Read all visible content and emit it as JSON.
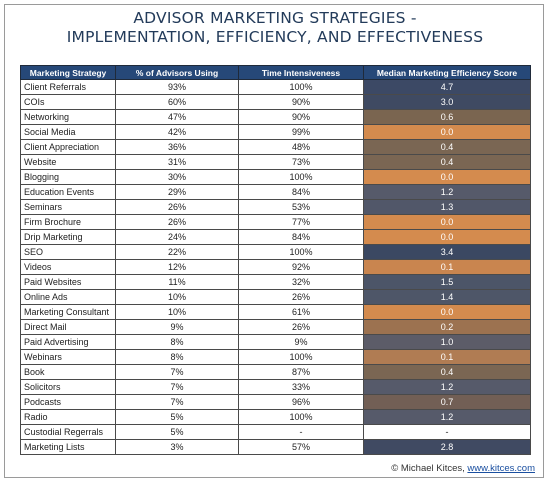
{
  "title": {
    "line1": "ADVISOR MARKETING STRATEGIES -",
    "line2": "IMPLEMENTATION, EFFICIENCY, AND EFFECTIVENESS"
  },
  "table": {
    "headers": [
      "Marketing Strategy",
      "% of Advisors Using",
      "Time Intensiveness",
      "Median Marketing Efficiency Score"
    ],
    "score_colors": {
      "dark": "#3b4760",
      "slate": "#55596a",
      "brown": "#7a6653",
      "orange": "#d48b4e",
      "white": "#ffffff"
    },
    "rows": [
      {
        "strategy": "Client Referrals",
        "pct": "93%",
        "time": "100%",
        "score": "4.7",
        "color": "#3c4965"
      },
      {
        "strategy": "COIs",
        "pct": "60%",
        "time": "90%",
        "score": "3.0",
        "color": "#3f4a62"
      },
      {
        "strategy": "Networking",
        "pct": "47%",
        "time": "90%",
        "score": "0.6",
        "color": "#7a6550"
      },
      {
        "strategy": "Social Media",
        "pct": "42%",
        "time": "99%",
        "score": "0.0",
        "color": "#d48b4e"
      },
      {
        "strategy": "Client Appreciation",
        "pct": "36%",
        "time": "48%",
        "score": "0.4",
        "color": "#7a6653"
      },
      {
        "strategy": "Website",
        "pct": "31%",
        "time": "73%",
        "score": "0.4",
        "color": "#7a6653"
      },
      {
        "strategy": "Blogging",
        "pct": "30%",
        "time": "100%",
        "score": "0.0",
        "color": "#d48b4e"
      },
      {
        "strategy": "Education Events",
        "pct": "29%",
        "time": "84%",
        "score": "1.2",
        "color": "#565a6a"
      },
      {
        "strategy": "Seminars",
        "pct": "26%",
        "time": "53%",
        "score": "1.3",
        "color": "#515769"
      },
      {
        "strategy": "Firm Brochure",
        "pct": "26%",
        "time": "77%",
        "score": "0.0",
        "color": "#d48b4e"
      },
      {
        "strategy": "Drip Marketing",
        "pct": "24%",
        "time": "84%",
        "score": "0.0",
        "color": "#d48b4e"
      },
      {
        "strategy": "SEO",
        "pct": "22%",
        "time": "100%",
        "score": "3.4",
        "color": "#3b4862"
      },
      {
        "strategy": "Videos",
        "pct": "12%",
        "time": "92%",
        "score": "0.1",
        "color": "#c9854f"
      },
      {
        "strategy": "Paid Websites",
        "pct": "11%",
        "time": "32%",
        "score": "1.5",
        "color": "#4c5568"
      },
      {
        "strategy": "Online Ads",
        "pct": "10%",
        "time": "26%",
        "score": "1.4",
        "color": "#4e5668"
      },
      {
        "strategy": "Marketing Consultant",
        "pct": "10%",
        "time": "61%",
        "score": "0.0",
        "color": "#d48b4e"
      },
      {
        "strategy": "Direct Mail",
        "pct": "9%",
        "time": "26%",
        "score": "0.2",
        "color": "#9c7250"
      },
      {
        "strategy": "Paid Advertising",
        "pct": "8%",
        "time": "9%",
        "score": "1.0",
        "color": "#5c5c68"
      },
      {
        "strategy": "Webinars",
        "pct": "8%",
        "time": "100%",
        "score": "0.1",
        "color": "#b07c53"
      },
      {
        "strategy": "Book",
        "pct": "7%",
        "time": "87%",
        "score": "0.4",
        "color": "#7a6653"
      },
      {
        "strategy": "Solicitors",
        "pct": "7%",
        "time": "33%",
        "score": "1.2",
        "color": "#565a6a"
      },
      {
        "strategy": "Podcasts",
        "pct": "7%",
        "time": "96%",
        "score": "0.7",
        "color": "#725f55"
      },
      {
        "strategy": "Radio",
        "pct": "5%",
        "time": "100%",
        "score": "1.2",
        "color": "#565a6a"
      },
      {
        "strategy": "Custodial Regerrals",
        "pct": "5%",
        "time": "-",
        "score": "-",
        "color": "#ffffff"
      },
      {
        "strategy": "Marketing Lists",
        "pct": "3%",
        "time": "57%",
        "score": "2.8",
        "color": "#404a62"
      }
    ]
  },
  "credit": {
    "prefix": "© Michael Kitces, ",
    "link": "www.kitces.com"
  }
}
